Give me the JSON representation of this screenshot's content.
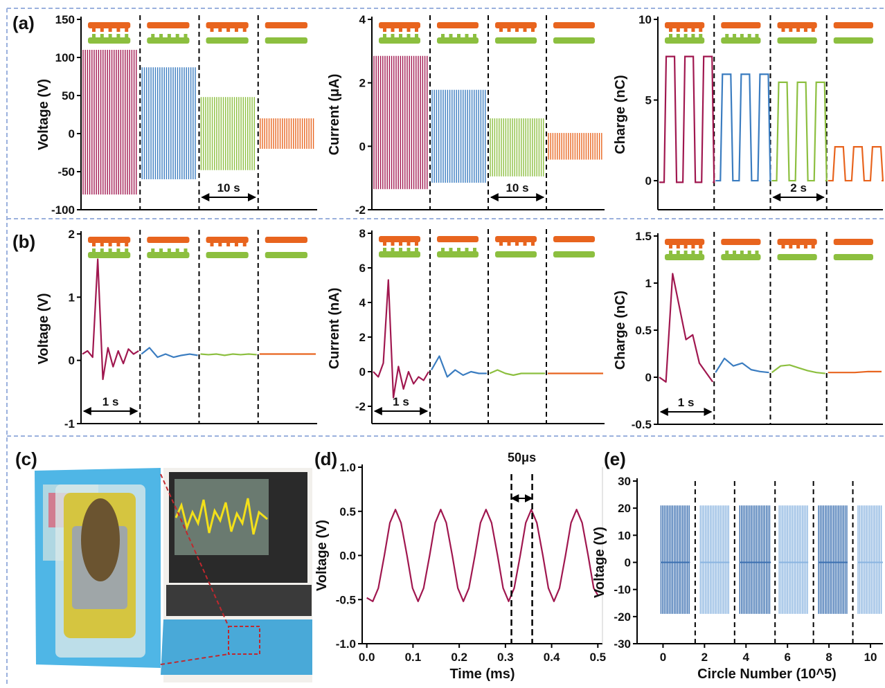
{
  "panel_labels": [
    "(a)",
    "(b)",
    "(c)",
    "(d)",
    "(e)"
  ],
  "chart_data": [
    {
      "type": "spikes",
      "y_label": "Voltage (V)",
      "ylim": [
        -100,
        150
      ],
      "yticks": [
        150,
        100,
        50,
        0,
        -50,
        -100
      ],
      "annotation": "10 s",
      "series": [
        {
          "color": "#a0174f",
          "high": 110,
          "low": -80
        },
        {
          "color": "#3a7cc0",
          "high": 87,
          "low": -60
        },
        {
          "color": "#8cbf3f",
          "high": 48,
          "low": -48
        },
        {
          "color": "#e8641e",
          "high": 20,
          "low": -20
        }
      ]
    },
    {
      "type": "spikes",
      "y_label": "Current (μA)",
      "ylim": [
        -2,
        4
      ],
      "yticks": [
        4,
        2,
        0,
        -2
      ],
      "annotation": "10 s",
      "series": [
        {
          "color": "#a0174f",
          "high": 2.85,
          "low": -1.35
        },
        {
          "color": "#3a7cc0",
          "high": 1.78,
          "low": -1.15
        },
        {
          "color": "#8cbf3f",
          "high": 0.88,
          "low": -0.95
        },
        {
          "color": "#e8641e",
          "high": 0.42,
          "low": -0.42
        }
      ]
    },
    {
      "type": "pulses",
      "y_label": "Charge (nC)",
      "ylim": [
        -1.8,
        10
      ],
      "yticks": [
        10,
        5,
        0
      ],
      "annotation": "2 s",
      "series": [
        {
          "color": "#a0174f",
          "high": 7.7,
          "low": -0.1
        },
        {
          "color": "#3a7cc0",
          "high": 6.6,
          "low": 0
        },
        {
          "color": "#8cbf3f",
          "high": 6.1,
          "low": 0
        },
        {
          "color": "#e8641e",
          "high": 2.1,
          "low": 0
        }
      ]
    },
    {
      "type": "segments",
      "y_label": "Voltage (V)",
      "ylim": [
        -1,
        2
      ],
      "yticks": [
        2,
        1,
        0,
        -1
      ],
      "annotation": "1 s",
      "series": [
        {
          "color": "#a0174f",
          "values": [
            0.1,
            0.15,
            0.05,
            1.6,
            -0.3,
            0.2,
            -0.1,
            0.15,
            -0.05,
            0.18,
            0.1,
            0.15
          ]
        },
        {
          "color": "#3a7cc0",
          "values": [
            0.1,
            0.2,
            0.05,
            0.1,
            0.05,
            0.08,
            0.1,
            0.08
          ]
        },
        {
          "color": "#8cbf3f",
          "values": [
            0.1,
            0.09,
            0.1,
            0.08,
            0.1,
            0.09,
            0.1,
            0.09
          ]
        },
        {
          "color": "#e8641e",
          "values": [
            0.1,
            0.1,
            0.1,
            0.1
          ]
        }
      ]
    },
    {
      "type": "segments",
      "y_label": "Current (nA)",
      "ylim": [
        -3,
        8
      ],
      "yticks": [
        8,
        6,
        4,
        2,
        0,
        -2
      ],
      "annotation": "1 s",
      "series": [
        {
          "color": "#a0174f",
          "values": [
            0,
            -0.3,
            0.5,
            5.3,
            -1.5,
            0.3,
            -1,
            0,
            -0.7,
            -0.3,
            -0.5,
            0
          ]
        },
        {
          "color": "#3a7cc0",
          "values": [
            0.1,
            0.9,
            -0.3,
            0.1,
            -0.2,
            0,
            -0.1,
            -0.1
          ]
        },
        {
          "color": "#8cbf3f",
          "values": [
            -0.1,
            0.1,
            -0.1,
            -0.2,
            -0.1,
            -0.1,
            -0.1,
            -0.1
          ]
        },
        {
          "color": "#e8641e",
          "values": [
            -0.1,
            -0.1,
            -0.1,
            -0.1
          ]
        }
      ]
    },
    {
      "type": "segments",
      "y_label": "Charge (nC)",
      "ylim": [
        -0.5,
        1.5
      ],
      "yticks": [
        1.5,
        1,
        0.5,
        0,
        -0.5
      ],
      "annotation": "1 s",
      "series": [
        {
          "color": "#a0174f",
          "values": [
            0,
            -0.05,
            1.1,
            0.75,
            0.4,
            0.45,
            0.15,
            0.05,
            -0.05
          ]
        },
        {
          "color": "#3a7cc0",
          "values": [
            0.05,
            0.2,
            0.12,
            0.15,
            0.08,
            0.06,
            0.05
          ]
        },
        {
          "color": "#8cbf3f",
          "values": [
            0.05,
            0.12,
            0.13,
            0.1,
            0.07,
            0.05,
            0.04
          ]
        },
        {
          "color": "#e8641e",
          "values": [
            0.05,
            0.05,
            0.05,
            0.06,
            0.06
          ]
        }
      ]
    },
    {
      "type": "line",
      "y_label": "Voltage (V)",
      "x_label": "Time (ms)",
      "annotation": "50μs",
      "markers": [
        0.313,
        0.358
      ],
      "xlim": [
        -0.01,
        0.51
      ],
      "ylim": [
        -1,
        1
      ],
      "xticks": [
        {
          "value": 0,
          "label": "0.0"
        },
        0.1,
        0.2,
        0.3,
        0.4,
        0.5
      ],
      "yticks": [
        {
          "value": 1,
          "label": "1.0"
        },
        0.5,
        {
          "value": 0,
          "label": "0.0"
        },
        -0.5,
        {
          "value": -1,
          "label": "-1.0"
        }
      ],
      "color": "#a0174f",
      "x": [
        0,
        0.013,
        0.025,
        0.038,
        0.05,
        0.062,
        0.074,
        0.087,
        0.099,
        0.111,
        0.123,
        0.136,
        0.148,
        0.16,
        0.172,
        0.185,
        0.197,
        0.209,
        0.221,
        0.234,
        0.246,
        0.258,
        0.27,
        0.283,
        0.295,
        0.307,
        0.319,
        0.332,
        0.344,
        0.356,
        0.368,
        0.381,
        0.393,
        0.405,
        0.417,
        0.43,
        0.442,
        0.454,
        0.466,
        0.479,
        0.491,
        0.5
      ],
      "values": [
        -0.48,
        -0.52,
        -0.37,
        0,
        0.37,
        0.52,
        0.37,
        0,
        -0.37,
        -0.52,
        -0.37,
        0,
        0.37,
        0.52,
        0.37,
        0,
        -0.37,
        -0.52,
        -0.37,
        0,
        0.37,
        0.52,
        0.37,
        0,
        -0.37,
        -0.52,
        -0.37,
        0,
        0.37,
        0.52,
        0.37,
        0,
        -0.37,
        -0.52,
        -0.37,
        0,
        0.37,
        0.52,
        0.37,
        0,
        -0.37,
        -0.45
      ]
    },
    {
      "type": "spikes",
      "y_label": "Voltage (V)",
      "x_label": "Circle Number (10^5)",
      "xlim": [
        -1.25,
        10.6
      ],
      "ylim": [
        -30,
        30
      ],
      "xticks": [
        0,
        2,
        4,
        6,
        8,
        10
      ],
      "yticks": [
        30,
        20,
        10,
        0,
        -10,
        -20,
        -30
      ],
      "series": [
        {
          "color": "#3a6fb0",
          "x": [
            -0.1,
            1.3
          ],
          "high": 21,
          "low": -19
        },
        {
          "color": "#8ab4e0",
          "x": [
            1.8,
            3.2
          ],
          "high": 21,
          "low": -19
        },
        {
          "color": "#3a6fb0",
          "x": [
            3.7,
            5.2
          ],
          "high": 21,
          "low": -19
        },
        {
          "color": "#8ab4e0",
          "x": [
            5.6,
            7.0
          ],
          "high": 21,
          "low": -19
        },
        {
          "color": "#3a6fb0",
          "x": [
            7.5,
            8.9
          ],
          "high": 21,
          "low": -19
        },
        {
          "color": "#8ab4e0",
          "x": [
            9.4,
            10.6
          ],
          "high": 21,
          "low": -19
        }
      ]
    }
  ]
}
